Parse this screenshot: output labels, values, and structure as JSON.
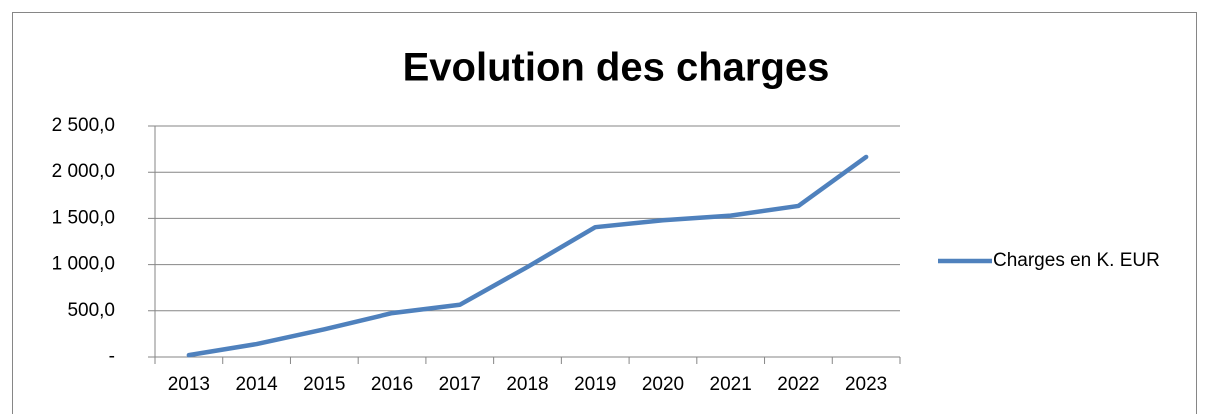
{
  "chart_data": {
    "type": "line",
    "title": "Evolution des charges",
    "categories": [
      "2013",
      "2014",
      "2015",
      "2016",
      "2017",
      "2018",
      "2019",
      "2020",
      "2021",
      "2022",
      "2023"
    ],
    "series": [
      {
        "name": "Charges en K. EUR",
        "color": "#4f81bd",
        "values": [
          20,
          140,
          300,
          475,
          565,
          975,
          1405,
          1480,
          1530,
          1635,
          2165
        ]
      }
    ],
    "ylim": [
      0,
      2500
    ],
    "yticks": [
      {
        "value": 0,
        "label": "-"
      },
      {
        "value": 500,
        "label": "500,0"
      },
      {
        "value": 1000,
        "label": "1 000,0"
      },
      {
        "value": 1500,
        "label": "1 500,0"
      },
      {
        "value": 2000,
        "label": "2 000,0"
      },
      {
        "value": 2500,
        "label": "2 500,0"
      }
    ],
    "grid": true,
    "legend": "right"
  }
}
